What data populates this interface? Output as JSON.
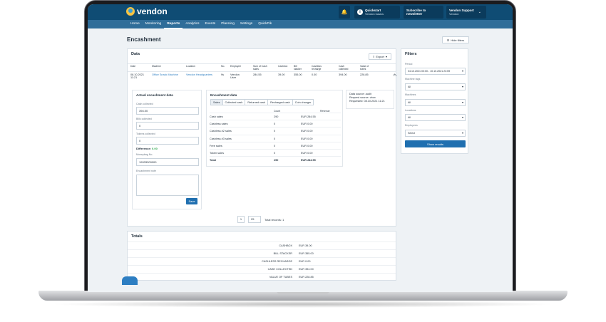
{
  "app": {
    "logo": "vendon"
  },
  "topbar": {
    "quickstart_title": "Quickstart",
    "quickstart_sub": "Vendon basics",
    "newsletter": "Subscribe to newsletter",
    "user_name": "Vendon Support",
    "user_company": "Vendon"
  },
  "nav": [
    "Home",
    "Monitoring",
    "Reports",
    "Analytics",
    "Events",
    "Planning",
    "Settings",
    "QuickPik"
  ],
  "page": {
    "title": "Encashment",
    "hide_filters": "Hide filters"
  },
  "data_panel": {
    "title": "Data",
    "export": "Export",
    "columns": [
      "Date",
      "Machine",
      "Location",
      "No.",
      "Employee",
      "Sum of Cash sales",
      "Cashbox",
      "Bill stacker",
      "Cashless recharge",
      "Cash collected",
      "Value of tubes"
    ],
    "row": {
      "date": "08.10.2021 11:21",
      "machine": "Office Snack Machine",
      "location": "Vendon Headquarters",
      "no": "9s",
      "employee": "Vendon User",
      "cash_sales": "284.55",
      "cashbox": "39.00",
      "bill_stacker": "355.00",
      "cashless": "0.00",
      "cash_collected": "394.00",
      "tubes": "228.85"
    }
  },
  "actual": {
    "title": "Actual encashment data",
    "cash_collected_label": "Cash collected",
    "cash_collected": "394.00",
    "bills_label": "Bills collected",
    "bills": "0",
    "tokens_label": "Tokens collected",
    "tokens": "0",
    "difference_label": "Difference:",
    "difference": "0.00",
    "moneybag_label": "Moneybag No.",
    "moneybag": "19933300000",
    "note_label": "Encashment note",
    "save": "Save"
  },
  "enc": {
    "title": "Encashment data",
    "tabs": [
      "Sales",
      "Collected cash",
      "Returned cash",
      "Recharged cash",
      "Coin changer"
    ],
    "col_count": "Count",
    "col_revenue": "Revenue",
    "rows": [
      {
        "name": "Cash sales",
        "count": "290",
        "revenue": "EUR 284.55"
      },
      {
        "name": "Cashless sales",
        "count": "0",
        "revenue": "EUR 0.00"
      },
      {
        "name": "Cashless #2 sales",
        "count": "0",
        "revenue": "EUR 0.00"
      },
      {
        "name": "Cashless #3 sales",
        "count": "0",
        "revenue": "EUR 0.00"
      },
      {
        "name": "Free sales",
        "count": "0",
        "revenue": "EUR 0.00"
      },
      {
        "name": "Token sales",
        "count": "0",
        "revenue": "EUR 0.00"
      },
      {
        "name": "Total",
        "count": "290",
        "revenue": "EUR 284.55"
      }
    ]
  },
  "source": {
    "line1": "Data source: audit",
    "line2": "Request source: vbox",
    "line3": "Requested: 08.10.2021 11:21"
  },
  "pager": {
    "page": "1",
    "per_page": "25",
    "total": "Total records: 1"
  },
  "filters": {
    "title": "Filters",
    "period_label": "Period",
    "period": "04.10.2021 00:00 - 10.10.2021 23:59",
    "tags_label": "Machine tags",
    "tags": "All",
    "machines_label": "Machines",
    "machines": "All",
    "locations_label": "Locations",
    "locations": "All",
    "employees_label": "Employees",
    "employees": "Select",
    "show": "Show results"
  },
  "totals": {
    "title": "Totals",
    "rows": [
      {
        "k": "CASHBOX",
        "v": "EUR 39.00"
      },
      {
        "k": "BILL STACKER",
        "v": "EUR 355.00"
      },
      {
        "k": "CASHLESS RECHARGE",
        "v": "EUR 0.00"
      },
      {
        "k": "CASH COLLECTED",
        "v": "EUR 394.00"
      },
      {
        "k": "VALUE OF TUBES",
        "v": "EUR 228.85"
      }
    ]
  }
}
